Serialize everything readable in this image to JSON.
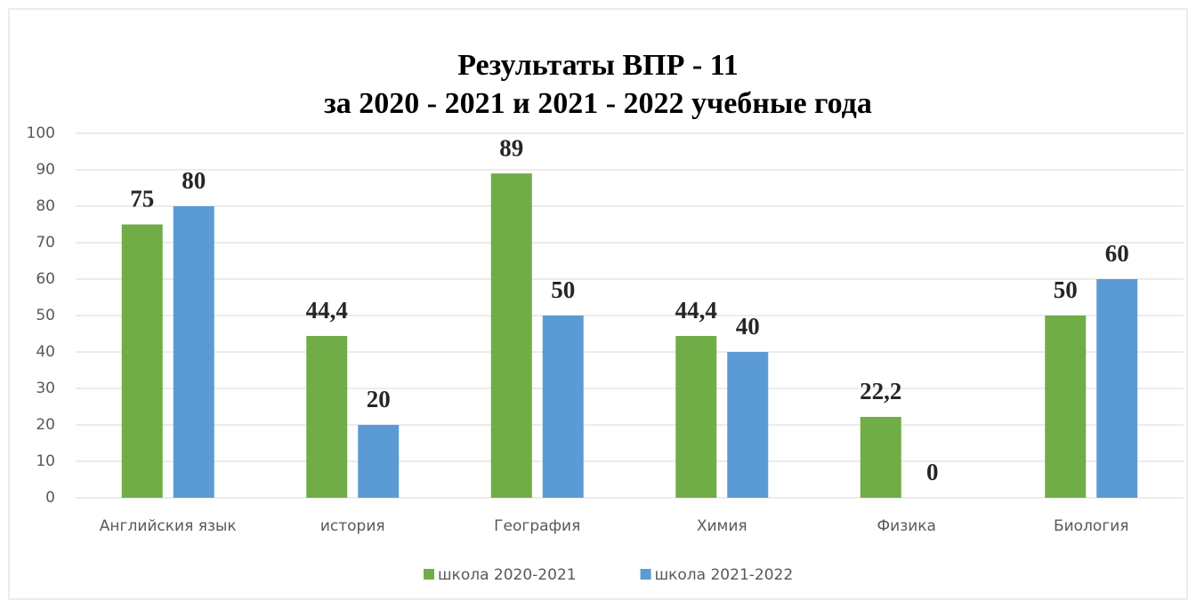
{
  "chart_data": {
    "type": "bar",
    "title": [
      "Результаты ВПР - 11",
      "за 2020 - 2021 и 2021 - 2022 учебные года"
    ],
    "categories": [
      "Английския язык",
      "история",
      "География",
      "Химия",
      "Физика",
      "Биология"
    ],
    "series": [
      {
        "name": "школа 2020-2021",
        "color": "#70ad47",
        "values": [
          75,
          44.4,
          89,
          44.4,
          22.2,
          50
        ],
        "value_labels": [
          "75",
          "44,4",
          "89",
          "44,4",
          "22,2",
          "50"
        ]
      },
      {
        "name": "школа 2021-2022",
        "color": "#5b9bd5",
        "values": [
          80,
          20,
          50,
          40,
          0,
          60
        ],
        "value_labels": [
          "80",
          "20",
          "50",
          "40",
          "0",
          "60"
        ]
      }
    ],
    "ylim": [
      0,
      100
    ],
    "yticks": [
      0,
      10,
      20,
      30,
      40,
      50,
      60,
      70,
      80,
      90,
      100
    ],
    "grid": true,
    "legend": "bottom"
  }
}
